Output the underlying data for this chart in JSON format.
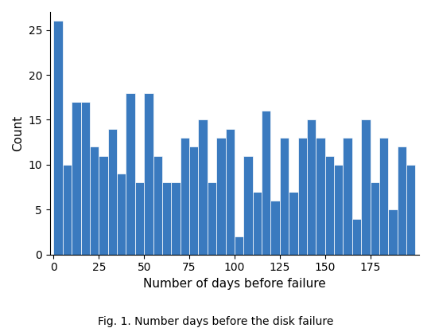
{
  "bar_heights": [
    26,
    10,
    17,
    17,
    12,
    11,
    14,
    9,
    18,
    8,
    18,
    11,
    8,
    8,
    13,
    12,
    15,
    8,
    13,
    14,
    2,
    11,
    7,
    16,
    6,
    13,
    7,
    13,
    15,
    13,
    11,
    10,
    13,
    4,
    15,
    8,
    13,
    5,
    12,
    10
  ],
  "bin_width": 5,
  "bar_color": "#3a7abf",
  "xlabel": "Number of days before failure",
  "ylabel": "Count",
  "xticks": [
    0,
    25,
    50,
    75,
    100,
    125,
    150,
    175
  ],
  "yticks": [
    0,
    5,
    10,
    15,
    20,
    25
  ],
  "ylim": [
    0,
    27
  ],
  "xlim": [
    -2,
    202
  ],
  "figcaption": "Fig. 1. Number days before the disk failure",
  "figsize": [
    5.42,
    4.12
  ],
  "dpi": 100
}
